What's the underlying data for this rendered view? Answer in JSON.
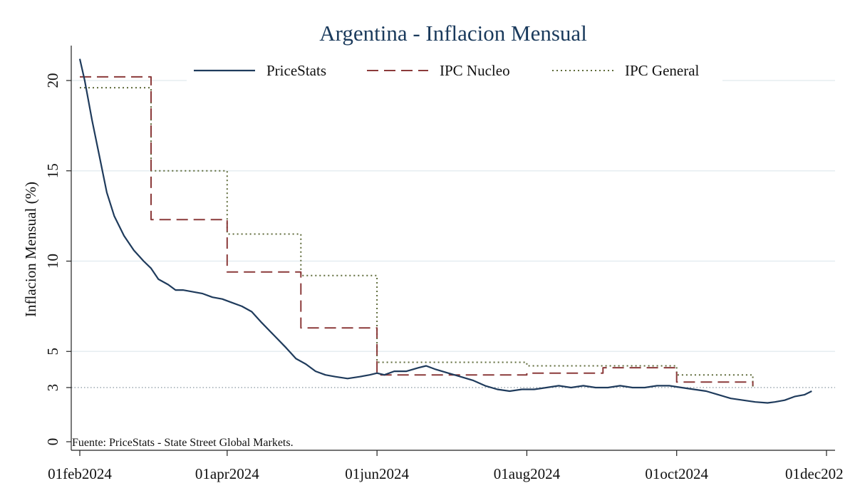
{
  "chart_data": {
    "type": "line",
    "title": "Argentina - Inflacion Mensual",
    "ylabel": "Inflacion Mensual (%)",
    "xlabel": "",
    "x_ticks": [
      "01feb2024",
      "01apr2024",
      "01jun2024",
      "01aug2024",
      "01oct2024",
      "01dec202"
    ],
    "y_ticks": [
      0,
      3,
      5,
      10,
      15,
      20
    ],
    "ylim": [
      -0.3,
      22
    ],
    "xlim": [
      "2024-02-01",
      "2024-12-01"
    ],
    "reference_line": 3,
    "source": "Fuente: PriceStats - State Street Global Markets.",
    "grid": true,
    "legend_position": "top",
    "series": [
      {
        "name": "PriceStats",
        "style": "solid",
        "color": "#1f3b5c",
        "points": [
          [
            "2024-02-01",
            21.2
          ],
          [
            "2024-02-03",
            20.0
          ],
          [
            "2024-02-06",
            17.8
          ],
          [
            "2024-02-09",
            15.8
          ],
          [
            "2024-02-12",
            13.8
          ],
          [
            "2024-02-15",
            12.5
          ],
          [
            "2024-02-19",
            11.4
          ],
          [
            "2024-02-23",
            10.6
          ],
          [
            "2024-02-27",
            10.0
          ],
          [
            "2024-03-01",
            9.6
          ],
          [
            "2024-03-04",
            9.0
          ],
          [
            "2024-03-08",
            8.7
          ],
          [
            "2024-03-11",
            8.4
          ],
          [
            "2024-03-14",
            8.4
          ],
          [
            "2024-03-18",
            8.3
          ],
          [
            "2024-03-22",
            8.2
          ],
          [
            "2024-03-26",
            8.0
          ],
          [
            "2024-03-30",
            7.9
          ],
          [
            "2024-04-03",
            7.7
          ],
          [
            "2024-04-07",
            7.5
          ],
          [
            "2024-04-11",
            7.2
          ],
          [
            "2024-04-15",
            6.6
          ],
          [
            "2024-04-20",
            5.9
          ],
          [
            "2024-04-25",
            5.2
          ],
          [
            "2024-04-29",
            4.6
          ],
          [
            "2024-05-03",
            4.3
          ],
          [
            "2024-05-07",
            3.9
          ],
          [
            "2024-05-11",
            3.7
          ],
          [
            "2024-05-15",
            3.6
          ],
          [
            "2024-05-20",
            3.5
          ],
          [
            "2024-05-25",
            3.6
          ],
          [
            "2024-05-29",
            3.7
          ],
          [
            "2024-06-01",
            3.8
          ],
          [
            "2024-06-04",
            3.7
          ],
          [
            "2024-06-08",
            3.9
          ],
          [
            "2024-06-13",
            3.9
          ],
          [
            "2024-06-18",
            4.1
          ],
          [
            "2024-06-21",
            4.2
          ],
          [
            "2024-06-25",
            4.0
          ],
          [
            "2024-06-30",
            3.8
          ],
          [
            "2024-07-05",
            3.6
          ],
          [
            "2024-07-10",
            3.4
          ],
          [
            "2024-07-15",
            3.1
          ],
          [
            "2024-07-20",
            2.9
          ],
          [
            "2024-07-25",
            2.8
          ],
          [
            "2024-07-30",
            2.9
          ],
          [
            "2024-08-04",
            2.9
          ],
          [
            "2024-08-09",
            3.0
          ],
          [
            "2024-08-14",
            3.1
          ],
          [
            "2024-08-19",
            3.0
          ],
          [
            "2024-08-24",
            3.1
          ],
          [
            "2024-08-29",
            3.0
          ],
          [
            "2024-09-03",
            3.0
          ],
          [
            "2024-09-08",
            3.1
          ],
          [
            "2024-09-13",
            3.0
          ],
          [
            "2024-09-18",
            3.0
          ],
          [
            "2024-09-23",
            3.1
          ],
          [
            "2024-09-28",
            3.1
          ],
          [
            "2024-10-03",
            3.0
          ],
          [
            "2024-10-08",
            2.9
          ],
          [
            "2024-10-13",
            2.8
          ],
          [
            "2024-10-18",
            2.6
          ],
          [
            "2024-10-23",
            2.4
          ],
          [
            "2024-10-28",
            2.3
          ],
          [
            "2024-11-02",
            2.2
          ],
          [
            "2024-11-07",
            2.15
          ],
          [
            "2024-11-10",
            2.2
          ],
          [
            "2024-11-14",
            2.3
          ],
          [
            "2024-11-18",
            2.5
          ],
          [
            "2024-11-22",
            2.6
          ],
          [
            "2024-11-25",
            2.8
          ]
        ]
      },
      {
        "name": "IPC Nucleo",
        "style": "dashed",
        "color": "#8b3a3a",
        "points": [
          [
            "2024-02-01",
            20.2
          ],
          [
            "2024-03-01",
            20.2
          ],
          [
            "2024-03-01",
            12.3
          ],
          [
            "2024-04-01",
            12.3
          ],
          [
            "2024-04-01",
            9.4
          ],
          [
            "2024-05-01",
            9.4
          ],
          [
            "2024-05-01",
            6.3
          ],
          [
            "2024-06-01",
            6.3
          ],
          [
            "2024-06-01",
            3.7
          ],
          [
            "2024-08-01",
            3.7
          ],
          [
            "2024-08-01",
            3.8
          ],
          [
            "2024-09-01",
            3.8
          ],
          [
            "2024-09-01",
            4.1
          ],
          [
            "2024-10-01",
            4.1
          ],
          [
            "2024-10-01",
            3.3
          ],
          [
            "2024-11-01",
            3.3
          ],
          [
            "2024-11-01",
            3.1
          ]
        ]
      },
      {
        "name": "IPC General",
        "style": "dotted",
        "color": "#5f6b3a",
        "points": [
          [
            "2024-02-01",
            19.6
          ],
          [
            "2024-03-01",
            19.6
          ],
          [
            "2024-03-01",
            15.0
          ],
          [
            "2024-04-01",
            15.0
          ],
          [
            "2024-04-01",
            11.5
          ],
          [
            "2024-05-01",
            11.5
          ],
          [
            "2024-05-01",
            9.2
          ],
          [
            "2024-06-01",
            9.2
          ],
          [
            "2024-06-01",
            4.4
          ],
          [
            "2024-08-01",
            4.4
          ],
          [
            "2024-08-01",
            4.2
          ],
          [
            "2024-09-01",
            4.2
          ],
          [
            "2024-09-01",
            4.2
          ],
          [
            "2024-10-01",
            4.2
          ],
          [
            "2024-10-01",
            3.7
          ],
          [
            "2024-11-01",
            3.7
          ],
          [
            "2024-11-01",
            2.9
          ]
        ]
      }
    ]
  }
}
